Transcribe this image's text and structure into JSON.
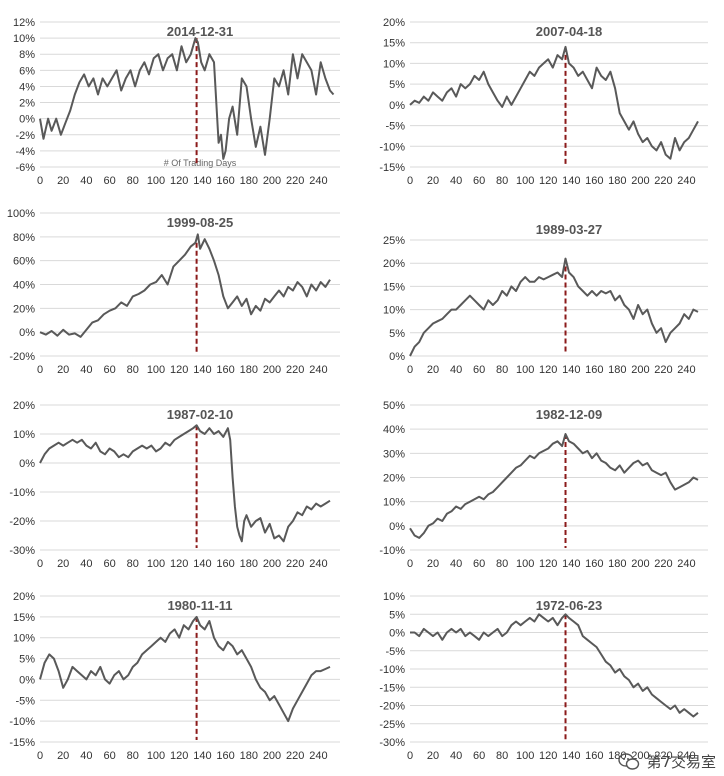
{
  "colors": {
    "line": "#595959",
    "marker": "#8b1a1a",
    "grid": "#d9d9d9"
  },
  "watermark": {
    "text": "第7交易室",
    "icon": "wechat-icon"
  },
  "chart_data": [
    {
      "type": "line",
      "title": "2014-12-31",
      "xlabel": "# Of Trading Days",
      "xlim": [
        0,
        250
      ],
      "ylim": [
        -6,
        12
      ],
      "ystep": 2,
      "marker_x": 135,
      "yticks": [
        "-6%",
        "-4%",
        "-2%",
        "0%",
        "2%",
        "4%",
        "6%",
        "8%",
        "10%",
        "12%"
      ],
      "xticks": [
        "0",
        "20",
        "40",
        "60",
        "80",
        "100",
        "120",
        "140",
        "160",
        "180",
        "200",
        "220",
        "240"
      ],
      "x": [
        0,
        3,
        7,
        10,
        14,
        18,
        22,
        26,
        30,
        34,
        38,
        42,
        46,
        50,
        54,
        58,
        62,
        66,
        70,
        74,
        78,
        82,
        86,
        90,
        94,
        98,
        102,
        106,
        110,
        114,
        118,
        122,
        126,
        130,
        134,
        136,
        139,
        142,
        146,
        150,
        154,
        156,
        158,
        160,
        163,
        166,
        170,
        174,
        178,
        182,
        186,
        190,
        194,
        198,
        202,
        206,
        210,
        214,
        218,
        222,
        226,
        230,
        234,
        238,
        242,
        246,
        250,
        253
      ],
      "y": [
        0,
        -2.5,
        0,
        -1.5,
        0,
        -2,
        -0.5,
        1,
        3,
        4.5,
        5.5,
        4,
        5,
        3,
        5,
        4,
        5,
        6,
        3.5,
        5,
        6,
        4,
        6,
        7,
        5.5,
        7.5,
        8,
        6,
        7.5,
        8,
        6,
        9,
        7,
        8,
        10,
        9.5,
        7,
        6,
        8,
        7,
        -3,
        -2,
        -5,
        -4,
        0,
        1.5,
        -2,
        5,
        4,
        0,
        -3.5,
        -1,
        -4.5,
        0,
        5,
        4,
        6,
        3,
        8,
        5,
        8,
        7,
        6,
        3,
        7,
        5,
        3.5,
        3
      ],
      "markers_min": null
    },
    {
      "type": "line",
      "title": "2007-04-18",
      "xlim": [
        0,
        250
      ],
      "ylim": [
        -15,
        20
      ],
      "ystep": 5,
      "marker_x": 135,
      "yticks": [
        "-15%",
        "-10%",
        "-5%",
        "0%",
        "5%",
        "10%",
        "15%",
        "20%"
      ],
      "xticks": [
        "0",
        "20",
        "40",
        "60",
        "80",
        "100",
        "120",
        "140",
        "160",
        "180",
        "200",
        "220",
        "240"
      ],
      "x": [
        0,
        4,
        8,
        12,
        16,
        20,
        24,
        28,
        32,
        36,
        40,
        44,
        48,
        52,
        56,
        60,
        64,
        68,
        72,
        76,
        80,
        84,
        88,
        92,
        96,
        100,
        104,
        108,
        112,
        116,
        120,
        124,
        128,
        132,
        135,
        138,
        142,
        146,
        150,
        154,
        158,
        162,
        166,
        170,
        174,
        178,
        182,
        186,
        190,
        194,
        198,
        202,
        206,
        210,
        214,
        218,
        222,
        226,
        230,
        234,
        238,
        242,
        246,
        250
      ],
      "y": [
        0,
        1,
        0.5,
        2,
        1,
        3,
        2,
        1,
        3,
        4,
        2,
        5,
        4,
        5,
        7,
        6,
        8,
        5,
        3,
        1,
        -0.5,
        2,
        0,
        2,
        4,
        6,
        8,
        7,
        9,
        10,
        11,
        9,
        12,
        11,
        14,
        10,
        9,
        7,
        8,
        6,
        4,
        9,
        7,
        6,
        8,
        4,
        -2,
        -4,
        -6,
        -4,
        -7,
        -9,
        -8,
        -10,
        -11,
        -9,
        -12,
        -13,
        -8,
        -11,
        -9,
        -8,
        -6,
        -4
      ],
      "markers_min": null
    },
    {
      "type": "line",
      "title": "1999-08-25",
      "xlim": [
        0,
        250
      ],
      "ylim": [
        -20,
        100
      ],
      "ystep": 20,
      "marker_x": 135,
      "yticks": [
        "-20%",
        "0%",
        "20%",
        "40%",
        "60%",
        "80%",
        "100%"
      ],
      "xticks": [
        "0",
        "20",
        "40",
        "60",
        "80",
        "100",
        "120",
        "140",
        "160",
        "180",
        "200",
        "220",
        "240"
      ],
      "x": [
        0,
        5,
        10,
        15,
        20,
        25,
        30,
        35,
        40,
        45,
        50,
        55,
        60,
        65,
        70,
        75,
        80,
        85,
        90,
        95,
        100,
        105,
        110,
        115,
        120,
        125,
        130,
        134,
        136,
        138,
        142,
        146,
        150,
        154,
        158,
        162,
        166,
        170,
        174,
        178,
        182,
        186,
        190,
        194,
        198,
        202,
        206,
        210,
        214,
        218,
        222,
        226,
        230,
        234,
        238,
        242,
        246,
        250
      ],
      "y": [
        0,
        -2,
        1,
        -3,
        2,
        -2,
        -1,
        -4,
        2,
        8,
        10,
        15,
        18,
        20,
        25,
        22,
        30,
        32,
        35,
        40,
        42,
        48,
        40,
        55,
        60,
        65,
        72,
        75,
        82,
        70,
        78,
        70,
        60,
        48,
        30,
        20,
        25,
        30,
        22,
        28,
        15,
        22,
        18,
        28,
        25,
        30,
        35,
        30,
        38,
        35,
        42,
        38,
        30,
        40,
        35,
        42,
        38,
        44
      ],
      "markers_min": null
    },
    {
      "type": "line",
      "title": "1989-03-27",
      "xlim": [
        0,
        250
      ],
      "ylim": [
        0,
        25
      ],
      "ystep": 5,
      "marker_x": 135,
      "yticks": [
        "0%",
        "5%",
        "10%",
        "15%",
        "20%",
        "25%"
      ],
      "xticks": [
        "0",
        "20",
        "40",
        "60",
        "80",
        "100",
        "120",
        "140",
        "160",
        "180",
        "200",
        "220",
        "240"
      ],
      "x": [
        0,
        4,
        8,
        12,
        16,
        20,
        24,
        28,
        32,
        36,
        40,
        44,
        48,
        52,
        56,
        60,
        64,
        68,
        72,
        76,
        80,
        84,
        88,
        92,
        96,
        100,
        104,
        108,
        112,
        116,
        120,
        124,
        128,
        132,
        135,
        138,
        142,
        146,
        150,
        154,
        158,
        162,
        166,
        170,
        174,
        178,
        182,
        186,
        190,
        194,
        198,
        202,
        206,
        210,
        214,
        218,
        222,
        226,
        230,
        234,
        238,
        242,
        246,
        250
      ],
      "y": [
        0,
        2,
        3,
        5,
        6,
        7,
        7.5,
        8,
        9,
        10,
        10,
        11,
        12,
        13,
        12,
        11,
        10,
        12,
        11,
        12,
        14,
        13,
        15,
        14,
        16,
        17,
        16,
        16,
        17,
        16.5,
        17,
        17.5,
        18,
        17,
        21,
        18,
        17,
        15,
        14,
        13,
        14,
        13,
        14,
        13.5,
        14,
        12,
        13,
        11,
        10,
        8,
        11,
        9,
        10,
        7,
        5,
        6,
        3,
        5,
        6,
        7,
        9,
        8,
        10,
        9.5
      ],
      "markers_min": null
    },
    {
      "type": "line",
      "title": "1987-02-10",
      "xlim": [
        0,
        250
      ],
      "ylim": [
        -30,
        20
      ],
      "ystep": 10,
      "marker_x": 135,
      "yticks": [
        "-30%",
        "-20%",
        "-10%",
        "0%",
        "10%",
        "20%"
      ],
      "xticks": [
        "0",
        "20",
        "40",
        "60",
        "80",
        "100",
        "120",
        "140",
        "160",
        "180",
        "200",
        "220",
        "240"
      ],
      "x": [
        0,
        4,
        8,
        12,
        16,
        20,
        24,
        28,
        32,
        36,
        40,
        44,
        48,
        52,
        56,
        60,
        64,
        68,
        72,
        76,
        80,
        84,
        88,
        92,
        96,
        100,
        104,
        108,
        112,
        116,
        120,
        124,
        128,
        132,
        135,
        138,
        142,
        146,
        150,
        154,
        158,
        162,
        164,
        166,
        168,
        170,
        172,
        174,
        176,
        178,
        182,
        186,
        190,
        194,
        198,
        202,
        206,
        210,
        214,
        218,
        222,
        226,
        230,
        234,
        238,
        242,
        246,
        250
      ],
      "y": [
        0,
        3,
        5,
        6,
        7,
        6,
        7,
        8,
        7,
        8,
        6,
        5,
        7,
        4,
        3,
        5,
        4,
        2,
        3,
        2,
        4,
        5,
        6,
        5,
        6,
        4,
        5,
        7,
        6,
        8,
        9,
        10,
        11,
        12,
        13,
        11,
        10,
        12,
        10,
        11,
        9,
        12,
        8,
        -5,
        -15,
        -22,
        -25,
        -27,
        -20,
        -18,
        -22,
        -20,
        -19,
        -24,
        -21,
        -26,
        -25,
        -27,
        -22,
        -20,
        -17,
        -18,
        -15,
        -16,
        -14,
        -15,
        -14,
        -13
      ],
      "markers_min": null
    },
    {
      "type": "line",
      "title": "1982-12-09",
      "xlim": [
        0,
        250
      ],
      "ylim": [
        -10,
        50
      ],
      "ystep": 10,
      "marker_x": 135,
      "yticks": [
        "-10%",
        "0%",
        "10%",
        "20%",
        "30%",
        "40%",
        "50%"
      ],
      "xticks": [
        "0",
        "20",
        "40",
        "60",
        "80",
        "100",
        "120",
        "140",
        "160",
        "180",
        "200",
        "220",
        "240"
      ],
      "x": [
        0,
        4,
        8,
        12,
        16,
        20,
        24,
        28,
        32,
        36,
        40,
        44,
        48,
        52,
        56,
        60,
        64,
        68,
        72,
        76,
        80,
        84,
        88,
        92,
        96,
        100,
        104,
        108,
        112,
        116,
        120,
        124,
        128,
        132,
        135,
        138,
        142,
        146,
        150,
        154,
        158,
        162,
        166,
        170,
        174,
        178,
        182,
        186,
        190,
        194,
        198,
        202,
        206,
        210,
        214,
        218,
        222,
        226,
        230,
        234,
        238,
        242,
        246,
        250
      ],
      "y": [
        -1,
        -4,
        -5,
        -3,
        0,
        1,
        3,
        2,
        5,
        6,
        8,
        7,
        9,
        10,
        11,
        12,
        11,
        13,
        14,
        16,
        18,
        20,
        22,
        24,
        25,
        27,
        29,
        28,
        30,
        31,
        32,
        34,
        35,
        33,
        38,
        35,
        34,
        32,
        30,
        31,
        28,
        30,
        27,
        26,
        24,
        23,
        25,
        22,
        24,
        26,
        27,
        25,
        26,
        23,
        22,
        21,
        22,
        18,
        15,
        16,
        17,
        18,
        20,
        19
      ],
      "markers_min": null
    },
    {
      "type": "line",
      "title": "1980-11-11",
      "xlim": [
        0,
        250
      ],
      "ylim": [
        -15,
        20
      ],
      "ystep": 5,
      "marker_x": 135,
      "yticks": [
        "-15%",
        "-10%",
        "-5%",
        "0%",
        "5%",
        "10%",
        "15%",
        "20%"
      ],
      "xticks": [
        "0",
        "20",
        "40",
        "60",
        "80",
        "100",
        "120",
        "140",
        "160",
        "180",
        "200",
        "220",
        "240"
      ],
      "x": [
        0,
        4,
        8,
        12,
        16,
        20,
        24,
        28,
        32,
        36,
        40,
        44,
        48,
        52,
        56,
        60,
        64,
        68,
        72,
        76,
        80,
        84,
        88,
        92,
        96,
        100,
        104,
        108,
        112,
        116,
        120,
        124,
        128,
        132,
        135,
        138,
        142,
        146,
        150,
        154,
        158,
        162,
        166,
        170,
        174,
        178,
        182,
        186,
        190,
        194,
        198,
        202,
        206,
        210,
        214,
        218,
        222,
        226,
        230,
        234,
        238,
        242,
        246,
        250
      ],
      "y": [
        0,
        4,
        6,
        5,
        2,
        -2,
        0,
        3,
        2,
        1,
        0,
        2,
        1,
        3,
        0,
        -1,
        1,
        2,
        0,
        1,
        3,
        4,
        6,
        7,
        8,
        9,
        10,
        9,
        11,
        12,
        10,
        13,
        12,
        14,
        15,
        13,
        12,
        14,
        10,
        8,
        7,
        9,
        8,
        6,
        7,
        5,
        3,
        0,
        -2,
        -3,
        -5,
        -4,
        -6,
        -8,
        -10,
        -7,
        -5,
        -3,
        -1,
        1,
        2,
        2,
        2.5,
        3
      ],
      "markers_min": null
    },
    {
      "type": "line",
      "title": "1972-06-23",
      "xlim": [
        0,
        250
      ],
      "ylim": [
        -30,
        10
      ],
      "ystep": 5,
      "marker_x": 135,
      "yticks": [
        "-30%",
        "-25%",
        "-20%",
        "-15%",
        "-10%",
        "-5%",
        "0%",
        "5%",
        "10%"
      ],
      "xticks": [
        "0",
        "20",
        "40",
        "60",
        "80",
        "100",
        "120",
        "140",
        "160",
        "180",
        "200",
        "220",
        "240"
      ],
      "x": [
        0,
        4,
        8,
        12,
        16,
        20,
        24,
        28,
        32,
        36,
        40,
        44,
        48,
        52,
        56,
        60,
        64,
        68,
        72,
        76,
        80,
        84,
        88,
        92,
        96,
        100,
        104,
        108,
        112,
        116,
        120,
        124,
        128,
        132,
        135,
        138,
        142,
        146,
        150,
        154,
        158,
        162,
        166,
        170,
        174,
        178,
        182,
        186,
        190,
        194,
        198,
        202,
        206,
        210,
        214,
        218,
        222,
        226,
        230,
        234,
        238,
        242,
        246,
        250
      ],
      "y": [
        0,
        0,
        -1,
        1,
        0,
        -1,
        0,
        -2,
        0,
        1,
        0,
        1,
        -1,
        0,
        -1,
        -2,
        0,
        -1,
        0,
        1,
        -1,
        0,
        2,
        3,
        2,
        3,
        4,
        3,
        5,
        4,
        3,
        4,
        2,
        4,
        5,
        4,
        3,
        2,
        -1,
        -2,
        -3,
        -4,
        -6,
        -8,
        -9,
        -11,
        -10,
        -12,
        -13,
        -15,
        -14,
        -16,
        -15,
        -17,
        -18,
        -19,
        -20,
        -21,
        -20,
        -22,
        -21,
        -22,
        -23,
        -22
      ],
      "markers_min": null
    }
  ]
}
